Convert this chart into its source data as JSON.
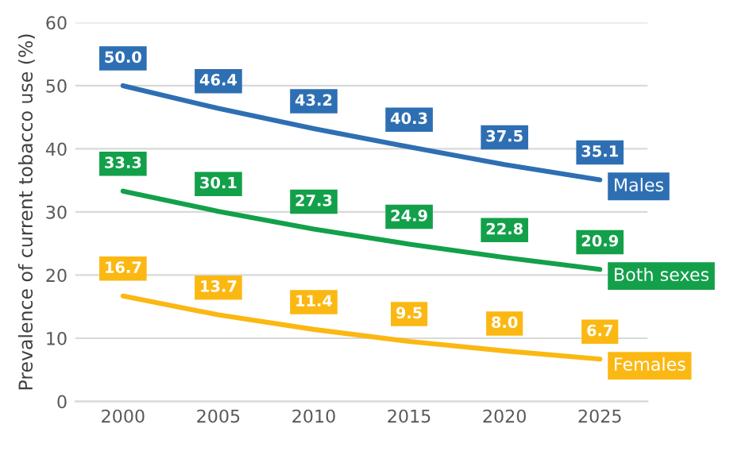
{
  "chart_data": {
    "type": "line",
    "ylabel": "Prevalence of current tobacco use (%)",
    "categories": [
      "2000",
      "2005",
      "2010",
      "2015",
      "2020",
      "2025"
    ],
    "series": [
      {
        "name": "Males",
        "color": "#2e6fb3",
        "values": [
          50.0,
          46.4,
          43.2,
          40.3,
          37.5,
          35.1
        ],
        "value_labels": [
          "50.0",
          "46.4",
          "43.2",
          "40.3",
          "37.5",
          "35.1"
        ]
      },
      {
        "name": "Both sexes",
        "color": "#13a04a",
        "values": [
          33.3,
          30.1,
          27.3,
          24.9,
          22.8,
          20.9
        ],
        "value_labels": [
          "33.3",
          "30.1",
          "27.3",
          "24.9",
          "22.8",
          "20.9"
        ]
      },
      {
        "name": "Females",
        "color": "#fbb813",
        "values": [
          16.7,
          13.7,
          11.4,
          9.5,
          8.0,
          6.7
        ],
        "value_labels": [
          "16.7",
          "13.7",
          "11.4",
          "9.5",
          "8.0",
          "6.7"
        ]
      }
    ],
    "ylim": [
      0,
      60
    ],
    "yticks": [
      0,
      10,
      20,
      30,
      40,
      50,
      60
    ],
    "grid": "y",
    "legend": "right",
    "marker": "none",
    "line_style": "solid"
  }
}
